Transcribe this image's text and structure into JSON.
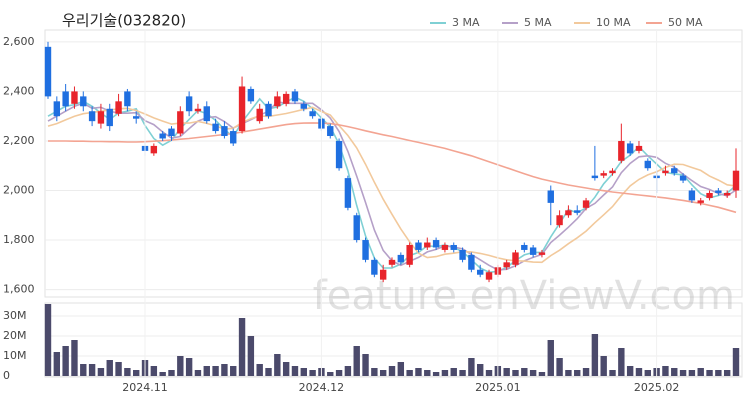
{
  "chart_data": [
    {
      "type": "candlestick",
      "title": "우리기술(032820)",
      "watermark": "feature.enViewV.com",
      "up_color": "#e8242b",
      "down_color": "#1f6fe0",
      "grid": true,
      "ylim": [
        1570,
        2648
      ],
      "yticks": [
        {
          "value": 1600,
          "label": "1,600"
        },
        {
          "value": 1800,
          "label": "1,800"
        },
        {
          "value": 2000,
          "label": "2,000"
        },
        {
          "value": 2200,
          "label": "2,200"
        },
        {
          "value": 2400,
          "label": "2,400"
        },
        {
          "value": 2600,
          "label": "2,600"
        }
      ],
      "open": [
        2580,
        2360,
        2400,
        2350,
        2380,
        2320,
        2270,
        2330,
        2310,
        2400,
        2300,
        2180,
        2150,
        2230,
        2250,
        2230,
        2380,
        2320,
        2340,
        2270,
        2260,
        2240,
        2240,
        2410,
        2280,
        2350,
        2340,
        2350,
        2400,
        2350,
        2320,
        2290,
        2260,
        2200,
        2050,
        1900,
        1800,
        1720,
        1640,
        1700,
        1740,
        1700,
        1790,
        1770,
        1800,
        1760,
        1780,
        1760,
        1740,
        1680,
        1640,
        1660,
        1690,
        1700,
        1780,
        1770,
        1740,
        2000,
        1860,
        1900,
        1920,
        1930,
        2060,
        2060,
        2070,
        2120,
        2190,
        2160,
        2120,
        2060,
        2070,
        2090,
        2060,
        2000,
        1950,
        1970,
        2000,
        1980,
        2000
      ],
      "high": [
        2600,
        2380,
        2430,
        2420,
        2400,
        2340,
        2350,
        2350,
        2390,
        2410,
        2320,
        2200,
        2190,
        2240,
        2260,
        2340,
        2400,
        2350,
        2360,
        2290,
        2280,
        2250,
        2460,
        2420,
        2350,
        2360,
        2400,
        2400,
        2410,
        2360,
        2330,
        2300,
        2270,
        2210,
        2060,
        1910,
        1810,
        1730,
        1700,
        1730,
        1750,
        1790,
        1800,
        1810,
        1810,
        1790,
        1790,
        1770,
        1750,
        1700,
        1680,
        1700,
        1720,
        1760,
        1790,
        1780,
        1760,
        2020,
        1920,
        1940,
        1940,
        1970,
        2180,
        2080,
        2090,
        2270,
        2200,
        2200,
        2130,
        2080,
        2100,
        2100,
        2070,
        2010,
        1970,
        2000,
        2010,
        2000,
        2170
      ],
      "low": [
        2370,
        2280,
        2320,
        2330,
        2320,
        2260,
        2250,
        2240,
        2300,
        2320,
        2270,
        2140,
        2140,
        2200,
        2200,
        2220,
        2300,
        2310,
        2270,
        2230,
        2210,
        2180,
        2230,
        2350,
        2270,
        2290,
        2330,
        2340,
        2350,
        2320,
        2290,
        2240,
        2210,
        2080,
        1920,
        1790,
        1710,
        1650,
        1630,
        1690,
        1700,
        1690,
        1750,
        1760,
        1760,
        1750,
        1750,
        1710,
        1670,
        1650,
        1630,
        1650,
        1680,
        1690,
        1750,
        1730,
        1730,
        1860,
        1850,
        1890,
        1900,
        1920,
        2040,
        2050,
        2060,
        2110,
        2140,
        2150,
        2080,
        1990,
        2060,
        2060,
        2030,
        1950,
        1940,
        1960,
        1980,
        1970,
        1970
      ],
      "close": [
        2380,
        2300,
        2340,
        2400,
        2340,
        2280,
        2320,
        2260,
        2360,
        2340,
        2290,
        2160,
        2180,
        2210,
        2220,
        2320,
        2320,
        2330,
        2280,
        2240,
        2220,
        2190,
        2420,
        2360,
        2330,
        2300,
        2380,
        2390,
        2360,
        2330,
        2300,
        2250,
        2220,
        2090,
        1930,
        1800,
        1720,
        1660,
        1680,
        1720,
        1710,
        1780,
        1760,
        1790,
        1770,
        1780,
        1760,
        1720,
        1680,
        1660,
        1670,
        1690,
        1710,
        1750,
        1760,
        1740,
        1750,
        1950,
        1900,
        1920,
        1910,
        1960,
        2050,
        2070,
        2080,
        2200,
        2150,
        2180,
        2090,
        2050,
        2080,
        2070,
        2040,
        1960,
        1960,
        1990,
        1990,
        1990,
        2080
      ],
      "series": [
        {
          "name": "3 MA",
          "color": "#7fd0d4",
          "values": [
            2300,
            2320,
            2340,
            2347,
            2360,
            2340,
            2313,
            2287,
            2313,
            2320,
            2330,
            2263,
            2210,
            2183,
            2203,
            2250,
            2287,
            2323,
            2310,
            2283,
            2247,
            2217,
            2277,
            2323,
            2370,
            2330,
            2337,
            2357,
            2377,
            2360,
            2330,
            2293,
            2257,
            2187,
            2080,
            1940,
            1817,
            1727,
            1687,
            1687,
            1703,
            1737,
            1750,
            1777,
            1773,
            1780,
            1770,
            1753,
            1720,
            1687,
            1670,
            1673,
            1690,
            1717,
            1740,
            1750,
            1750,
            1813,
            1867,
            1923,
            1910,
            1930,
            1973,
            2027,
            2067,
            2117,
            2143,
            2177,
            2140,
            2107,
            2073,
            2067,
            2063,
            2023,
            1987,
            1970,
            1980,
            1990,
            2020
          ]
        },
        {
          "name": "5 MA",
          "color": "#b5a0c8",
          "values": [
            2280,
            2300,
            2320,
            2340,
            2352,
            2332,
            2336,
            2320,
            2312,
            2312,
            2314,
            2282,
            2266,
            2236,
            2212,
            2218,
            2250,
            2280,
            2294,
            2298,
            2278,
            2252,
            2270,
            2286,
            2304,
            2320,
            2358,
            2352,
            2352,
            2352,
            2352,
            2326,
            2292,
            2238,
            2158,
            2058,
            1952,
            1840,
            1758,
            1716,
            1698,
            1714,
            1730,
            1752,
            1762,
            1776,
            1772,
            1764,
            1742,
            1720,
            1698,
            1680,
            1682,
            1696,
            1716,
            1730,
            1742,
            1790,
            1820,
            1852,
            1886,
            1928,
            1948,
            1982,
            2014,
            2072,
            2110,
            2136,
            2140,
            2134,
            2110,
            2094,
            2066,
            2040,
            2016,
            2004,
            1988,
            1978,
            2002
          ]
        },
        {
          "name": "10 MA",
          "color": "#f2c99c",
          "values": [
            2260,
            2270,
            2285,
            2300,
            2310,
            2315,
            2320,
            2325,
            2330,
            2332,
            2323,
            2309,
            2293,
            2280,
            2268,
            2272,
            2272,
            2279,
            2271,
            2261,
            2248,
            2251,
            2275,
            2290,
            2301,
            2299,
            2305,
            2311,
            2319,
            2328,
            2336,
            2319,
            2305,
            2262,
            2222,
            2172,
            2106,
            2033,
            1965,
            1904,
            1845,
            1793,
            1747,
            1729,
            1733,
            1743,
            1747,
            1753,
            1752,
            1746,
            1738,
            1728,
            1720,
            1716,
            1715,
            1711,
            1710,
            1737,
            1759,
            1785,
            1809,
            1836,
            1870,
            1902,
            1935,
            1979,
            2019,
            2045,
            2063,
            2076,
            2093,
            2106,
            2105,
            2093,
            2081,
            2058,
            2042,
            2023,
            2018
          ]
        },
        {
          "name": "50 MA",
          "color": "#f3a492",
          "values": [
            2200,
            2200,
            2200,
            2199,
            2199,
            2198,
            2198,
            2197,
            2197,
            2196,
            2196,
            2197,
            2199,
            2201,
            2204,
            2207,
            2210,
            2214,
            2218,
            2222,
            2226,
            2230,
            2236,
            2242,
            2248,
            2254,
            2260,
            2266,
            2270,
            2272,
            2273,
            2272,
            2270,
            2265,
            2258,
            2250,
            2241,
            2233,
            2225,
            2218,
            2210,
            2202,
            2194,
            2186,
            2178,
            2170,
            2160,
            2150,
            2140,
            2128,
            2116,
            2104,
            2092,
            2080,
            2068,
            2056,
            2046,
            2038,
            2030,
            2022,
            2016,
            2010,
            2004,
            1999,
            1994,
            1990,
            1986,
            1982,
            1978,
            1974,
            1970,
            1965,
            1960,
            1954,
            1948,
            1940,
            1932,
            1922,
            1912
          ]
        }
      ]
    },
    {
      "type": "bar",
      "color": "#4b4a6b",
      "grid": true,
      "ylim": [
        0,
        36.5
      ],
      "yticks": [
        0,
        {
          "value": 10,
          "label": "10M"
        },
        {
          "value": 20,
          "label": "20M"
        },
        {
          "value": 30,
          "label": "30M"
        }
      ],
      "categories": [
        null,
        null,
        null,
        null,
        null,
        null,
        null,
        null,
        null,
        null,
        null,
        "2024.11",
        null,
        null,
        null,
        null,
        null,
        null,
        null,
        null,
        null,
        null,
        null,
        null,
        null,
        null,
        null,
        null,
        null,
        null,
        null,
        "2024.12",
        null,
        null,
        null,
        null,
        null,
        null,
        null,
        null,
        null,
        null,
        null,
        null,
        null,
        null,
        null,
        null,
        null,
        null,
        null,
        "2025.01",
        null,
        null,
        null,
        null,
        null,
        null,
        null,
        null,
        null,
        null,
        null,
        null,
        null,
        null,
        null,
        null,
        null,
        "2025.02",
        null,
        null,
        null,
        null,
        null,
        null,
        null,
        null,
        null
      ],
      "values": [
        36,
        12,
        15,
        18,
        6,
        6,
        4,
        8,
        7,
        4,
        3,
        8,
        5,
        2,
        3,
        10,
        9,
        3,
        5,
        5,
        6,
        5,
        29,
        20,
        6,
        4,
        11,
        7,
        5,
        4,
        3,
        4,
        2,
        3,
        5,
        15,
        11,
        4,
        3,
        5,
        7,
        3,
        4,
        3,
        2,
        3,
        4,
        3,
        9,
        6,
        3,
        5,
        4,
        3,
        4,
        3,
        2,
        18,
        9,
        3,
        3,
        4,
        21,
        10,
        3,
        14,
        5,
        4,
        3,
        4,
        5,
        4,
        3,
        3,
        4,
        3,
        3,
        3,
        14
      ]
    }
  ]
}
